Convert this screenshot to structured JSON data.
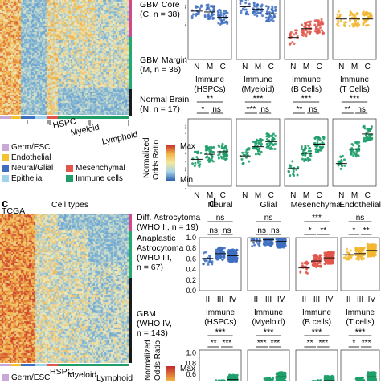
{
  "panel_a_groups": [
    {
      "label": "GBM Core",
      "sub": "(C, n = 38)",
      "color": "#d0488e"
    },
    {
      "label": "GBM Margin",
      "sub": "(M, n = 36)",
      "color": "#23a86f"
    },
    {
      "label": "Normal Brain",
      "sub": "(N, n = 17)",
      "color": "#1a1a1a"
    }
  ],
  "panel_a_xlabels": [
    "HSPC",
    "Myeloid",
    "Lymphoid"
  ],
  "colorbar": {
    "max": "Max",
    "min": "Min",
    "title_line1": "Normalized",
    "title_line2": "Odds Ratio"
  },
  "legend": {
    "items": [
      {
        "label": "Germ/ESC",
        "color": "#c9a7d6"
      },
      {
        "label": "Endothelial",
        "color": "#f2c230"
      },
      {
        "label": "Neural/Glial",
        "color": "#3f6fc1"
      },
      {
        "label": "Mesenchymal",
        "color": "#e2564b"
      },
      {
        "label": "Epithelial",
        "color": "#9fd3ec"
      },
      {
        "label": "Immune cells",
        "color": "#1f9e6a"
      }
    ]
  },
  "panel_c": {
    "letter": "c",
    "dataset": "TCGA",
    "title": "Cell types",
    "groups": [
      {
        "label": "Diff. Astrocytoma",
        "sub": "(WHO II, n = 19)",
        "color": "#d0488e"
      },
      {
        "label": "Anaplastic",
        "label2": "Astrocytoma",
        "label3": "(WHO III,",
        "sub": "n = 67)",
        "color": "#23a86f"
      },
      {
        "label": "GBM",
        "label2": "(WHO IV,",
        "sub": "n = 143)",
        "color": "#1a1a1a"
      }
    ],
    "xlabels": [
      "HSPC",
      "Myeloid",
      "Lymphoid"
    ],
    "legend_partial": "Germ/ESC"
  },
  "panel_d": {
    "letter": "d",
    "cols": [
      "Neural",
      "Glial",
      "Mesenchymal",
      "Endothelial"
    ],
    "xticks": [
      "II",
      "III",
      "IV"
    ],
    "sig_top": [
      "ns",
      "ns",
      "***",
      "ns"
    ],
    "sig_pairs": [
      [
        "ns",
        "ns"
      ],
      [
        "ns",
        "ns"
      ],
      [
        "*",
        "**"
      ],
      [
        "*",
        "**"
      ]
    ],
    "bottom_titles": [
      [
        "Immune",
        "(HSPCs)"
      ],
      [
        "Immune",
        "(Myeloid)"
      ],
      [
        "Immune",
        "(B cells)"
      ],
      [
        "Immune",
        "(T cells)"
      ]
    ],
    "bottom_sig_top": [
      "***",
      "***",
      "***",
      "***"
    ],
    "bottom_sig_pairs": [
      [
        "**",
        "***"
      ],
      [
        "***",
        "***"
      ],
      [
        "**",
        "***"
      ],
      [
        "*",
        "***"
      ]
    ]
  },
  "panel_b": {
    "ylabel": "Normalized Odds Ratio",
    "xticks": [
      "N",
      "M",
      "C"
    ],
    "bottom_titles": [
      [
        "Immune",
        "(HSPCs)"
      ],
      [
        "Immune",
        "(Myeloid)"
      ],
      [
        "Immune",
        "(B Cells)"
      ],
      [
        "Immune",
        "(T Cells)"
      ]
    ],
    "sig_top": [
      "**",
      "***",
      "***",
      "***"
    ],
    "sig_pairs": [
      [
        "*",
        "ns"
      ],
      [
        "***",
        "ns"
      ],
      [
        "**",
        "ns"
      ],
      [
        "**",
        "ns"
      ]
    ]
  },
  "yticks_b": [
    "0.9",
    "0.8",
    "0.7",
    "0.6",
    "0.5",
    "0.4",
    "0.3",
    "0.2",
    "0.1"
  ],
  "yticks_d": [
    "1.0",
    "0.8",
    "0.6",
    "0.4",
    "0.2",
    "0.0"
  ],
  "yticks_d2": [
    "1.0",
    "0.8",
    "0.6",
    "0.4"
  ],
  "yticks_b_top": [
    "0.8",
    "0.6",
    "0.4",
    "0.2"
  ],
  "chart_data": [
    {
      "type": "scatter",
      "panel": "b-top",
      "categories": [
        "N",
        "M",
        "C"
      ],
      "series": [
        {
          "values": [
            0.75,
            0.74,
            0.68
          ]
        },
        {
          "values": [
            0.8,
            0.77,
            0.72
          ]
        },
        {
          "values": [
            0.45,
            0.55,
            0.58
          ]
        },
        {
          "values": [
            0.66,
            0.66,
            0.66
          ]
        }
      ]
    },
    {
      "type": "scatter",
      "panel": "b-bottom",
      "ylim": [
        0.1,
        0.9
      ],
      "categories": [
        "N",
        "M",
        "C"
      ],
      "series": [
        {
          "values": [
            0.42,
            0.48,
            0.51
          ]
        },
        {
          "values": [
            0.46,
            0.57,
            0.63
          ]
        },
        {
          "values": [
            0.31,
            0.49,
            0.6
          ]
        },
        {
          "values": [
            0.37,
            0.54,
            0.72
          ]
        }
      ]
    },
    {
      "type": "scatter",
      "panel": "d-top",
      "ylim": [
        0.0,
        1.0
      ],
      "categories": [
        "II",
        "III",
        "IV"
      ],
      "series": [
        {
          "values": [
            0.61,
            0.7,
            0.66
          ]
        },
        {
          "values": [
            0.94,
            0.96,
            0.93
          ]
        },
        {
          "values": [
            0.43,
            0.56,
            0.62
          ]
        },
        {
          "values": [
            0.68,
            0.7,
            0.76
          ]
        }
      ]
    },
    {
      "type": "scatter",
      "panel": "d-bottom",
      "categories": [
        "II",
        "III",
        "IV"
      ],
      "series": [
        {
          "values": [
            0.3,
            0.4,
            0.5
          ]
        },
        {
          "values": [
            0.35,
            0.45,
            0.55
          ]
        },
        {
          "values": [
            0.3,
            0.4,
            0.48
          ]
        },
        {
          "values": [
            0.35,
            0.45,
            0.55
          ]
        }
      ]
    }
  ]
}
